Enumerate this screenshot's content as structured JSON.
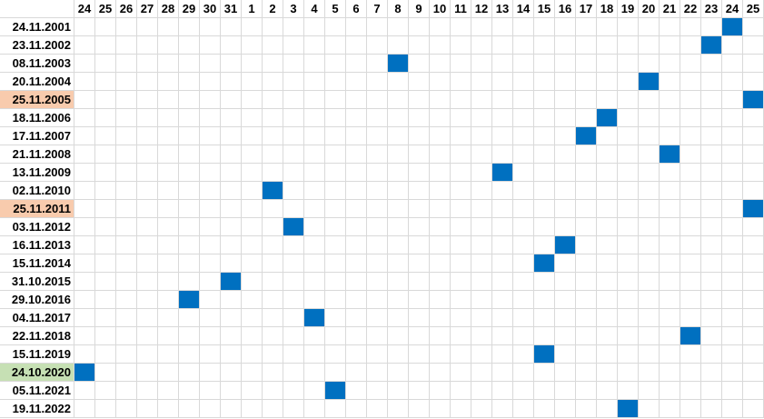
{
  "colors": {
    "mark": "#0070c0",
    "highlight_orange": "#f8cbad",
    "highlight_green": "#c6e0b4",
    "grid": "#d9d9d9"
  },
  "columns": [
    {
      "label": "24",
      "month": 10
    },
    {
      "label": "25",
      "month": 10
    },
    {
      "label": "26",
      "month": 10
    },
    {
      "label": "27",
      "month": 10
    },
    {
      "label": "28",
      "month": 10
    },
    {
      "label": "29",
      "month": 10
    },
    {
      "label": "30",
      "month": 10
    },
    {
      "label": "31",
      "month": 10
    },
    {
      "label": "1",
      "month": 11
    },
    {
      "label": "2",
      "month": 11
    },
    {
      "label": "3",
      "month": 11
    },
    {
      "label": "4",
      "month": 11
    },
    {
      "label": "5",
      "month": 11
    },
    {
      "label": "6",
      "month": 11
    },
    {
      "label": "7",
      "month": 11
    },
    {
      "label": "8",
      "month": 11
    },
    {
      "label": "9",
      "month": 11
    },
    {
      "label": "10",
      "month": 11
    },
    {
      "label": "11",
      "month": 11
    },
    {
      "label": "12",
      "month": 11
    },
    {
      "label": "13",
      "month": 11
    },
    {
      "label": "14",
      "month": 11
    },
    {
      "label": "15",
      "month": 11
    },
    {
      "label": "16",
      "month": 11
    },
    {
      "label": "17",
      "month": 11
    },
    {
      "label": "18",
      "month": 11
    },
    {
      "label": "19",
      "month": 11
    },
    {
      "label": "20",
      "month": 11
    },
    {
      "label": "21",
      "month": 11
    },
    {
      "label": "22",
      "month": 11
    },
    {
      "label": "23",
      "month": 11
    },
    {
      "label": "24",
      "month": 11
    },
    {
      "label": "25",
      "month": 11
    }
  ],
  "rows": [
    {
      "date": "24.11.2001",
      "highlight": null
    },
    {
      "date": "23.11.2002",
      "highlight": null
    },
    {
      "date": "08.11.2003",
      "highlight": null
    },
    {
      "date": "20.11.2004",
      "highlight": null
    },
    {
      "date": "25.11.2005",
      "highlight": "orange"
    },
    {
      "date": "18.11.2006",
      "highlight": null
    },
    {
      "date": "17.11.2007",
      "highlight": null
    },
    {
      "date": "21.11.2008",
      "highlight": null
    },
    {
      "date": "13.11.2009",
      "highlight": null
    },
    {
      "date": "02.11.2010",
      "highlight": null
    },
    {
      "date": "25.11.2011",
      "highlight": "orange"
    },
    {
      "date": "03.11.2012",
      "highlight": null
    },
    {
      "date": "16.11.2013",
      "highlight": null
    },
    {
      "date": "15.11.2014",
      "highlight": null
    },
    {
      "date": "31.10.2015",
      "highlight": null
    },
    {
      "date": "29.10.2016",
      "highlight": null
    },
    {
      "date": "04.11.2017",
      "highlight": null
    },
    {
      "date": "22.11.2018",
      "highlight": null
    },
    {
      "date": "15.11.2019",
      "highlight": null
    },
    {
      "date": "24.10.2020",
      "highlight": "green"
    },
    {
      "date": "05.11.2021",
      "highlight": null
    },
    {
      "date": "19.11.2022",
      "highlight": null
    }
  ]
}
